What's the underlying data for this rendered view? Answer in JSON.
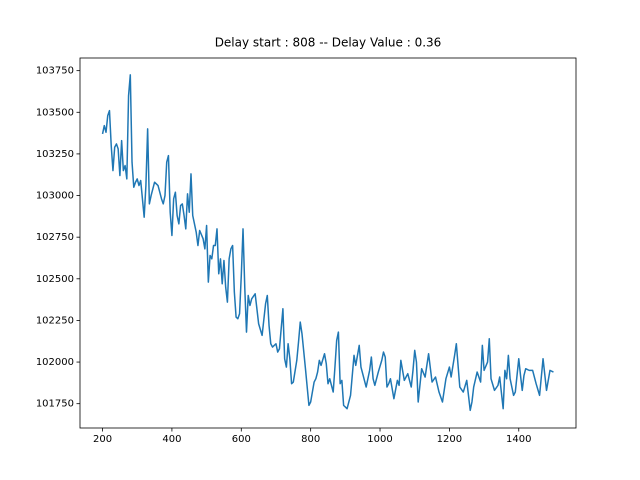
{
  "chart_data": {
    "type": "line",
    "title": "Delay start : 808 -- Delay Value : 0.36",
    "x": [
      200,
      205,
      210,
      215,
      220,
      225,
      230,
      235,
      240,
      245,
      250,
      255,
      260,
      265,
      270,
      275,
      280,
      285,
      290,
      295,
      300,
      305,
      310,
      315,
      320,
      325,
      330,
      335,
      340,
      350,
      360,
      370,
      375,
      380,
      385,
      390,
      395,
      400,
      405,
      410,
      415,
      420,
      425,
      430,
      435,
      440,
      445,
      450,
      455,
      460,
      470,
      475,
      480,
      490,
      495,
      500,
      505,
      510,
      515,
      520,
      525,
      530,
      535,
      540,
      545,
      550,
      555,
      560,
      565,
      570,
      575,
      580,
      585,
      590,
      595,
      600,
      605,
      610,
      615,
      620,
      625,
      630,
      640,
      650,
      660,
      670,
      675,
      680,
      685,
      690,
      700,
      705,
      710,
      720,
      725,
      730,
      735,
      740,
      745,
      750,
      760,
      765,
      770,
      775,
      785,
      795,
      800,
      810,
      815,
      820,
      825,
      830,
      840,
      845,
      850,
      855,
      865,
      870,
      875,
      880,
      885,
      890,
      895,
      905,
      915,
      925,
      930,
      940,
      945,
      950,
      960,
      970,
      975,
      980,
      985,
      995,
      1005,
      1010,
      1015,
      1020,
      1025,
      1030,
      1040,
      1050,
      1055,
      1060,
      1070,
      1080,
      1090,
      1095,
      1100,
      1105,
      1110,
      1120,
      1130,
      1140,
      1150,
      1160,
      1170,
      1180,
      1190,
      1200,
      1205,
      1215,
      1220,
      1225,
      1230,
      1240,
      1250,
      1260,
      1265,
      1270,
      1280,
      1290,
      1295,
      1300,
      1310,
      1315,
      1320,
      1330,
      1340,
      1345,
      1355,
      1360,
      1365,
      1370,
      1375,
      1385,
      1390,
      1400,
      1405,
      1410,
      1415,
      1420,
      1430,
      1440,
      1450,
      1460,
      1470,
      1480,
      1490,
      1500
    ],
    "values": [
      103370,
      103420,
      103380,
      103480,
      103510,
      103300,
      103150,
      103290,
      103310,
      103280,
      103120,
      103330,
      103150,
      103180,
      103100,
      103600,
      103725,
      103200,
      103050,
      103080,
      103100,
      103060,
      103090,
      102980,
      102870,
      103060,
      103400,
      102950,
      103000,
      103080,
      103060,
      102980,
      102950,
      103000,
      103200,
      103240,
      102900,
      102760,
      102980,
      103020,
      102880,
      102830,
      102940,
      102950,
      102880,
      102800,
      103010,
      102900,
      103130,
      102880,
      102780,
      102700,
      102790,
      102740,
      102680,
      102820,
      102480,
      102640,
      102620,
      102700,
      102700,
      102800,
      102530,
      102620,
      102470,
      102610,
      102450,
      102360,
      102620,
      102680,
      102700,
      102420,
      102270,
      102260,
      102290,
      102520,
      102800,
      102450,
      102180,
      102400,
      102340,
      102380,
      102410,
      102230,
      102160,
      102350,
      102400,
      102220,
      102110,
      102090,
      102110,
      102060,
      102080,
      102320,
      102020,
      101970,
      102110,
      102020,
      101870,
      101880,
      102010,
      102120,
      102240,
      102170,
      101960,
      101740,
      101760,
      101880,
      101900,
      101940,
      102010,
      101980,
      102050,
      101990,
      101870,
      101900,
      101820,
      101970,
      102130,
      102180,
      101870,
      101890,
      101740,
      101720,
      101800,
      102040,
      101980,
      102100,
      101970,
      101930,
      101850,
      101950,
      102030,
      101900,
      101860,
      101940,
      102010,
      102060,
      102030,
      101850,
      101870,
      101900,
      101780,
      101890,
      101860,
      102010,
      101890,
      101930,
      101850,
      101950,
      102070,
      102000,
      101760,
      101960,
      101910,
      102050,
      101880,
      101910,
      101820,
      101760,
      101900,
      101970,
      101910,
      102040,
      102110,
      101980,
      101850,
      101820,
      101890,
      101710,
      101760,
      101850,
      101940,
      101880,
      102100,
      101950,
      102000,
      102140,
      101900,
      101830,
      101860,
      101910,
      101720,
      101950,
      101900,
      102040,
      101900,
      101800,
      101820,
      102020,
      101920,
      101830,
      101920,
      101960,
      101950,
      101950,
      101870,
      101800,
      102020,
      101830,
      101950,
      101940
    ],
    "color": "#1f77b4",
    "xlim": [
      135,
      1565
    ],
    "ylim": [
      101604,
      103826
    ],
    "xticks": [
      200,
      400,
      600,
      800,
      1000,
      1200,
      1400
    ],
    "yticks": [
      101750,
      102000,
      102250,
      102500,
      102750,
      103000,
      103250,
      103500,
      103750
    ]
  }
}
